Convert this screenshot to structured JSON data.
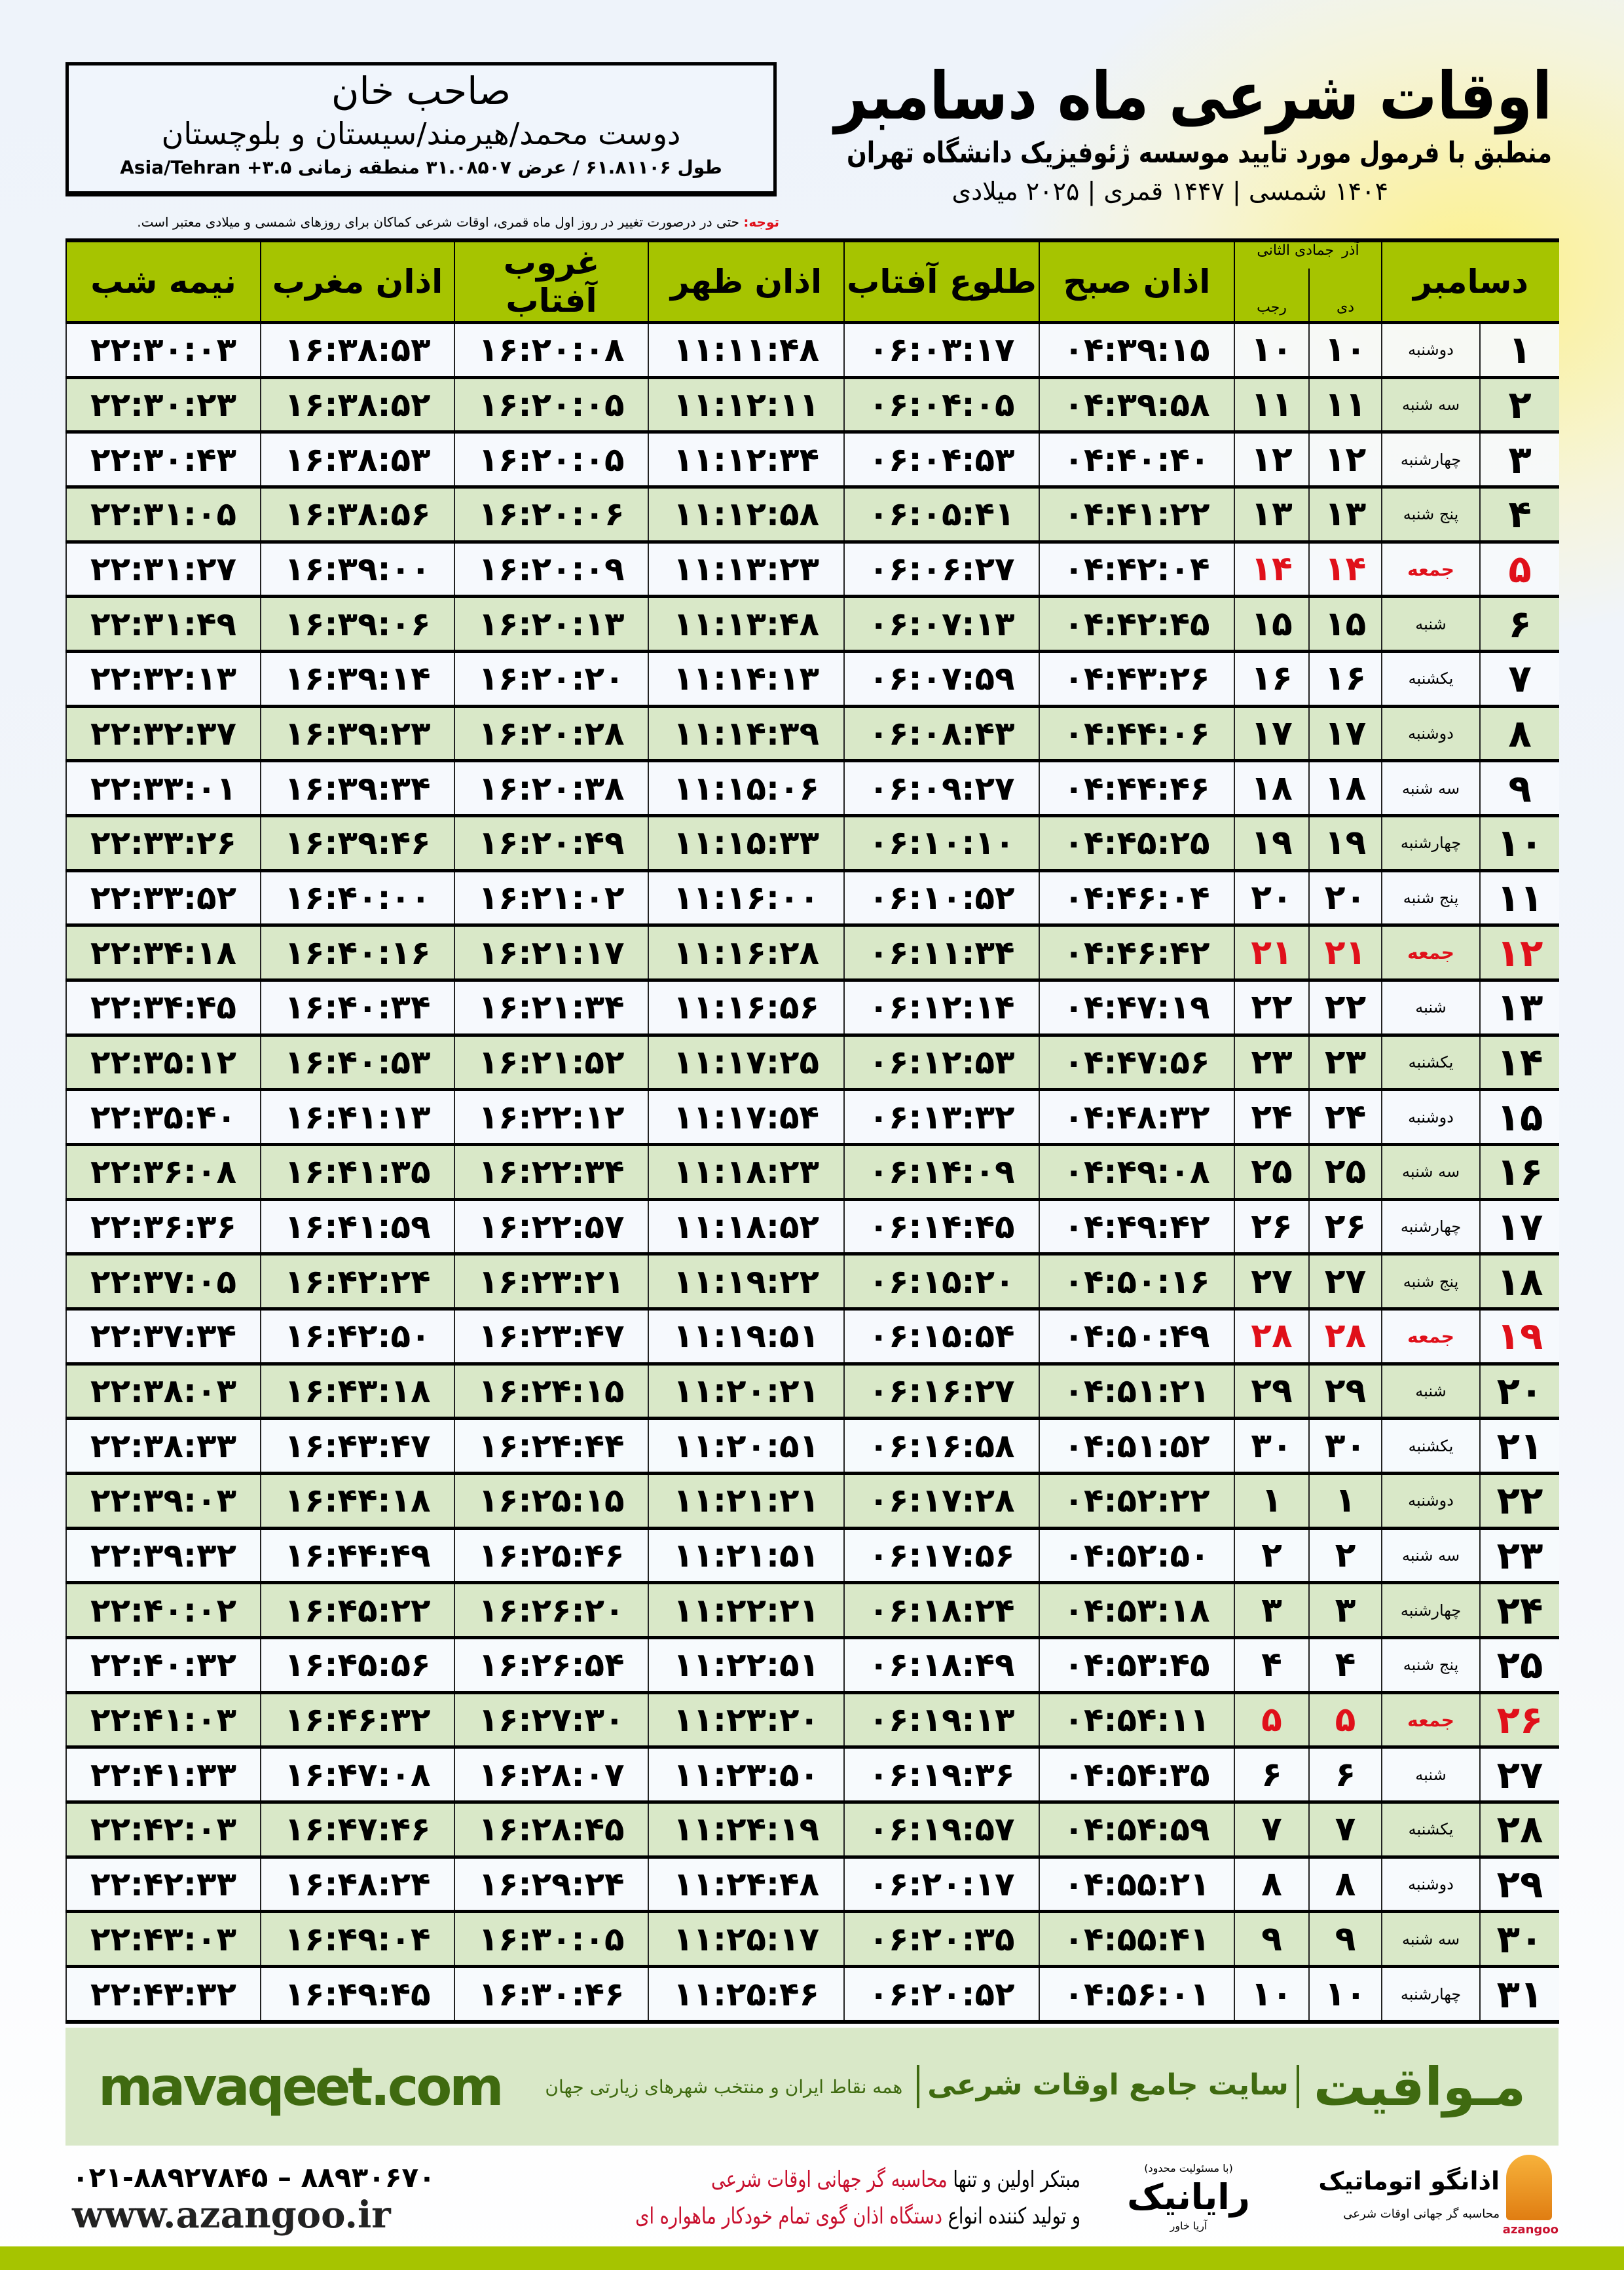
{
  "location": {
    "city": "صاحب خان",
    "region": "دوست محمد/هیرمند/سیستان و بلوچستان",
    "coords": "طول ۶۱.۸۱۱۰۶ / عرض ۳۱.۰۸۵۰۷ منطقه زمانی Asia/Tehran +۳.۵"
  },
  "title": {
    "main": "اوقات شرعی ماه دسامبر",
    "subtitle": "منطبق با فرمول مورد تایید موسسه ژئوفیزیک دانشگاه تهران",
    "years": "۱۴۰۴ شمسی | ۱۴۴۷ قمری | ۲۰۲۵ میلادی"
  },
  "note": {
    "label": "توجه:",
    "text": " حتی در درصورت تغییر در روز اول ماه قمری، اوقات شرعی کماکان برای روزهای شمسی و میلادی معتبر است."
  },
  "table": {
    "headers": {
      "month": "دسامبر",
      "shamsi_top": "آذر",
      "shamsi_bottom": "دی",
      "hijri_top": "جمادی الثانی",
      "hijri_bottom": "رجب",
      "sobh": "اذان صبح",
      "tolu": "طلوع آفتاب",
      "zohr": "اذان ظهر",
      "ghorub": "غروب آفتاب",
      "maghrib": "اذان مغرب",
      "nimeh": "نیمه شب"
    },
    "friday_color": "#e0101a",
    "header_color": "#a6c400",
    "alt_row_color": "#d9e8c8",
    "rows": [
      [
        "۱",
        "دوشنبه",
        "۱۰",
        "۱۰",
        "۰۴:۳۹:۱۵",
        "۰۶:۰۳:۱۷",
        "۱۱:۱۱:۴۸",
        "۱۶:۲۰:۰۸",
        "۱۶:۳۸:۵۳",
        "۲۲:۳۰:۰۳"
      ],
      [
        "۲",
        "سه شنبه",
        "۱۱",
        "۱۱",
        "۰۴:۳۹:۵۸",
        "۰۶:۰۴:۰۵",
        "۱۱:۱۲:۱۱",
        "۱۶:۲۰:۰۵",
        "۱۶:۳۸:۵۲",
        "۲۲:۳۰:۲۳"
      ],
      [
        "۳",
        "چهارشنبه",
        "۱۲",
        "۱۲",
        "۰۴:۴۰:۴۰",
        "۰۶:۰۴:۵۳",
        "۱۱:۱۲:۳۴",
        "۱۶:۲۰:۰۵",
        "۱۶:۳۸:۵۳",
        "۲۲:۳۰:۴۳"
      ],
      [
        "۴",
        "پنج شنبه",
        "۱۳",
        "۱۳",
        "۰۴:۴۱:۲۲",
        "۰۶:۰۵:۴۱",
        "۱۱:۱۲:۵۸",
        "۱۶:۲۰:۰۶",
        "۱۶:۳۸:۵۶",
        "۲۲:۳۱:۰۵"
      ],
      [
        "۵",
        "جمعه",
        "۱۴",
        "۱۴",
        "۰۴:۴۲:۰۴",
        "۰۶:۰۶:۲۷",
        "۱۱:۱۳:۲۳",
        "۱۶:۲۰:۰۹",
        "۱۶:۳۹:۰۰",
        "۲۲:۳۱:۲۷"
      ],
      [
        "۶",
        "شنبه",
        "۱۵",
        "۱۵",
        "۰۴:۴۲:۴۵",
        "۰۶:۰۷:۱۳",
        "۱۱:۱۳:۴۸",
        "۱۶:۲۰:۱۳",
        "۱۶:۳۹:۰۶",
        "۲۲:۳۱:۴۹"
      ],
      [
        "۷",
        "یکشنبه",
        "۱۶",
        "۱۶",
        "۰۴:۴۳:۲۶",
        "۰۶:۰۷:۵۹",
        "۱۱:۱۴:۱۳",
        "۱۶:۲۰:۲۰",
        "۱۶:۳۹:۱۴",
        "۲۲:۳۲:۱۳"
      ],
      [
        "۸",
        "دوشنبه",
        "۱۷",
        "۱۷",
        "۰۴:۴۴:۰۶",
        "۰۶:۰۸:۴۳",
        "۱۱:۱۴:۳۹",
        "۱۶:۲۰:۲۸",
        "۱۶:۳۹:۲۳",
        "۲۲:۳۲:۳۷"
      ],
      [
        "۹",
        "سه شنبه",
        "۱۸",
        "۱۸",
        "۰۴:۴۴:۴۶",
        "۰۶:۰۹:۲۷",
        "۱۱:۱۵:۰۶",
        "۱۶:۲۰:۳۸",
        "۱۶:۳۹:۳۴",
        "۲۲:۳۳:۰۱"
      ],
      [
        "۱۰",
        "چهارشنبه",
        "۱۹",
        "۱۹",
        "۰۴:۴۵:۲۵",
        "۰۶:۱۰:۱۰",
        "۱۱:۱۵:۳۳",
        "۱۶:۲۰:۴۹",
        "۱۶:۳۹:۴۶",
        "۲۲:۳۳:۲۶"
      ],
      [
        "۱۱",
        "پنج شنبه",
        "۲۰",
        "۲۰",
        "۰۴:۴۶:۰۴",
        "۰۶:۱۰:۵۲",
        "۱۱:۱۶:۰۰",
        "۱۶:۲۱:۰۲",
        "۱۶:۴۰:۰۰",
        "۲۲:۳۳:۵۲"
      ],
      [
        "۱۲",
        "جمعه",
        "۲۱",
        "۲۱",
        "۰۴:۴۶:۴۲",
        "۰۶:۱۱:۳۴",
        "۱۱:۱۶:۲۸",
        "۱۶:۲۱:۱۷",
        "۱۶:۴۰:۱۶",
        "۲۲:۳۴:۱۸"
      ],
      [
        "۱۳",
        "شنبه",
        "۲۲",
        "۲۲",
        "۰۴:۴۷:۱۹",
        "۰۶:۱۲:۱۴",
        "۱۱:۱۶:۵۶",
        "۱۶:۲۱:۳۴",
        "۱۶:۴۰:۳۴",
        "۲۲:۳۴:۴۵"
      ],
      [
        "۱۴",
        "یکشنبه",
        "۲۳",
        "۲۳",
        "۰۴:۴۷:۵۶",
        "۰۶:۱۲:۵۳",
        "۱۱:۱۷:۲۵",
        "۱۶:۲۱:۵۲",
        "۱۶:۴۰:۵۳",
        "۲۲:۳۵:۱۲"
      ],
      [
        "۱۵",
        "دوشنبه",
        "۲۴",
        "۲۴",
        "۰۴:۴۸:۳۲",
        "۰۶:۱۳:۳۲",
        "۱۱:۱۷:۵۴",
        "۱۶:۲۲:۱۲",
        "۱۶:۴۱:۱۳",
        "۲۲:۳۵:۴۰"
      ],
      [
        "۱۶",
        "سه شنبه",
        "۲۵",
        "۲۵",
        "۰۴:۴۹:۰۸",
        "۰۶:۱۴:۰۹",
        "۱۱:۱۸:۲۳",
        "۱۶:۲۲:۳۴",
        "۱۶:۴۱:۳۵",
        "۲۲:۳۶:۰۸"
      ],
      [
        "۱۷",
        "چهارشنبه",
        "۲۶",
        "۲۶",
        "۰۴:۴۹:۴۲",
        "۰۶:۱۴:۴۵",
        "۱۱:۱۸:۵۲",
        "۱۶:۲۲:۵۷",
        "۱۶:۴۱:۵۹",
        "۲۲:۳۶:۳۶"
      ],
      [
        "۱۸",
        "پنج شنبه",
        "۲۷",
        "۲۷",
        "۰۴:۵۰:۱۶",
        "۰۶:۱۵:۲۰",
        "۱۱:۱۹:۲۲",
        "۱۶:۲۳:۲۱",
        "۱۶:۴۲:۲۴",
        "۲۲:۳۷:۰۵"
      ],
      [
        "۱۹",
        "جمعه",
        "۲۸",
        "۲۸",
        "۰۴:۵۰:۴۹",
        "۰۶:۱۵:۵۴",
        "۱۱:۱۹:۵۱",
        "۱۶:۲۳:۴۷",
        "۱۶:۴۲:۵۰",
        "۲۲:۳۷:۳۴"
      ],
      [
        "۲۰",
        "شنبه",
        "۲۹",
        "۲۹",
        "۰۴:۵۱:۲۱",
        "۰۶:۱۶:۲۷",
        "۱۱:۲۰:۲۱",
        "۱۶:۲۴:۱۵",
        "۱۶:۴۳:۱۸",
        "۲۲:۳۸:۰۳"
      ],
      [
        "۲۱",
        "یکشنبه",
        "۳۰",
        "۳۰",
        "۰۴:۵۱:۵۲",
        "۰۶:۱۶:۵۸",
        "۱۱:۲۰:۵۱",
        "۱۶:۲۴:۴۴",
        "۱۶:۴۳:۴۷",
        "۲۲:۳۸:۳۳"
      ],
      [
        "۲۲",
        "دوشنبه",
        "۱",
        "۱",
        "۰۴:۵۲:۲۲",
        "۰۶:۱۷:۲۸",
        "۱۱:۲۱:۲۱",
        "۱۶:۲۵:۱۵",
        "۱۶:۴۴:۱۸",
        "۲۲:۳۹:۰۳"
      ],
      [
        "۲۳",
        "سه شنبه",
        "۲",
        "۲",
        "۰۴:۵۲:۵۰",
        "۰۶:۱۷:۵۶",
        "۱۱:۲۱:۵۱",
        "۱۶:۲۵:۴۶",
        "۱۶:۴۴:۴۹",
        "۲۲:۳۹:۳۲"
      ],
      [
        "۲۴",
        "چهارشنبه",
        "۳",
        "۳",
        "۰۴:۵۳:۱۸",
        "۰۶:۱۸:۲۴",
        "۱۱:۲۲:۲۱",
        "۱۶:۲۶:۲۰",
        "۱۶:۴۵:۲۲",
        "۲۲:۴۰:۰۲"
      ],
      [
        "۲۵",
        "پنج شنبه",
        "۴",
        "۴",
        "۰۴:۵۳:۴۵",
        "۰۶:۱۸:۴۹",
        "۱۱:۲۲:۵۱",
        "۱۶:۲۶:۵۴",
        "۱۶:۴۵:۵۶",
        "۲۲:۴۰:۳۲"
      ],
      [
        "۲۶",
        "جمعه",
        "۵",
        "۵",
        "۰۴:۵۴:۱۱",
        "۰۶:۱۹:۱۳",
        "۱۱:۲۳:۲۰",
        "۱۶:۲۷:۳۰",
        "۱۶:۴۶:۳۲",
        "۲۲:۴۱:۰۳"
      ],
      [
        "۲۷",
        "شنبه",
        "۶",
        "۶",
        "۰۴:۵۴:۳۵",
        "۰۶:۱۹:۳۶",
        "۱۱:۲۳:۵۰",
        "۱۶:۲۸:۰۷",
        "۱۶:۴۷:۰۸",
        "۲۲:۴۱:۳۳"
      ],
      [
        "۲۸",
        "یکشنبه",
        "۷",
        "۷",
        "۰۴:۵۴:۵۹",
        "۰۶:۱۹:۵۷",
        "۱۱:۲۴:۱۹",
        "۱۶:۲۸:۴۵",
        "۱۶:۴۷:۴۶",
        "۲۲:۴۲:۰۳"
      ],
      [
        "۲۹",
        "دوشنبه",
        "۸",
        "۸",
        "۰۴:۵۵:۲۱",
        "۰۶:۲۰:۱۷",
        "۱۱:۲۴:۴۸",
        "۱۶:۲۹:۲۴",
        "۱۶:۴۸:۲۴",
        "۲۲:۴۲:۳۳"
      ],
      [
        "۳۰",
        "سه شنبه",
        "۹",
        "۹",
        "۰۴:۵۵:۴۱",
        "۰۶:۲۰:۳۵",
        "۱۱:۲۵:۱۷",
        "۱۶:۳۰:۰۵",
        "۱۶:۴۹:۰۴",
        "۲۲:۴۳:۰۳"
      ],
      [
        "۳۱",
        "چهارشنبه",
        "۱۰",
        "۱۰",
        "۰۴:۵۶:۰۱",
        "۰۶:۲۰:۵۲",
        "۱۱:۲۵:۴۶",
        "۱۶:۳۰:۴۶",
        "۱۶:۴۹:۴۵",
        "۲۲:۴۳:۳۲"
      ]
    ]
  },
  "band": {
    "brand": "مـواقیت",
    "slogan": "سایت جامع اوقات شرعی",
    "sub": "همه نقاط ایران و منتخب شهرهای زیارتی جهان",
    "site": "mavaqeet.com"
  },
  "footer": {
    "phone": "۰۲۱-۸۸۹۲۷۸۴۵ – ۸۸۹۳۰۶۷۰",
    "web": "www.azangoo.ir",
    "line1_a": "مبتکر اولین و تنها ",
    "line1_b": "محاسبه گر جهانی اوقات شرعی",
    "line2_a": "و تولید کننده انواع ",
    "line2_b": "دستگاه اذان گوی تمام خودکار ماهواره ای",
    "rayanic_name": "رایانیک",
    "rayanic_sub": "آریا خاور",
    "rayanic_note": "(با مسئولیت محدود)",
    "azangoo_name": "اذانگو اتوماتیک",
    "azangoo_tag": "محاسبه گر جهانی اوقات شرعی",
    "azangoo_latin": "azangoo"
  }
}
